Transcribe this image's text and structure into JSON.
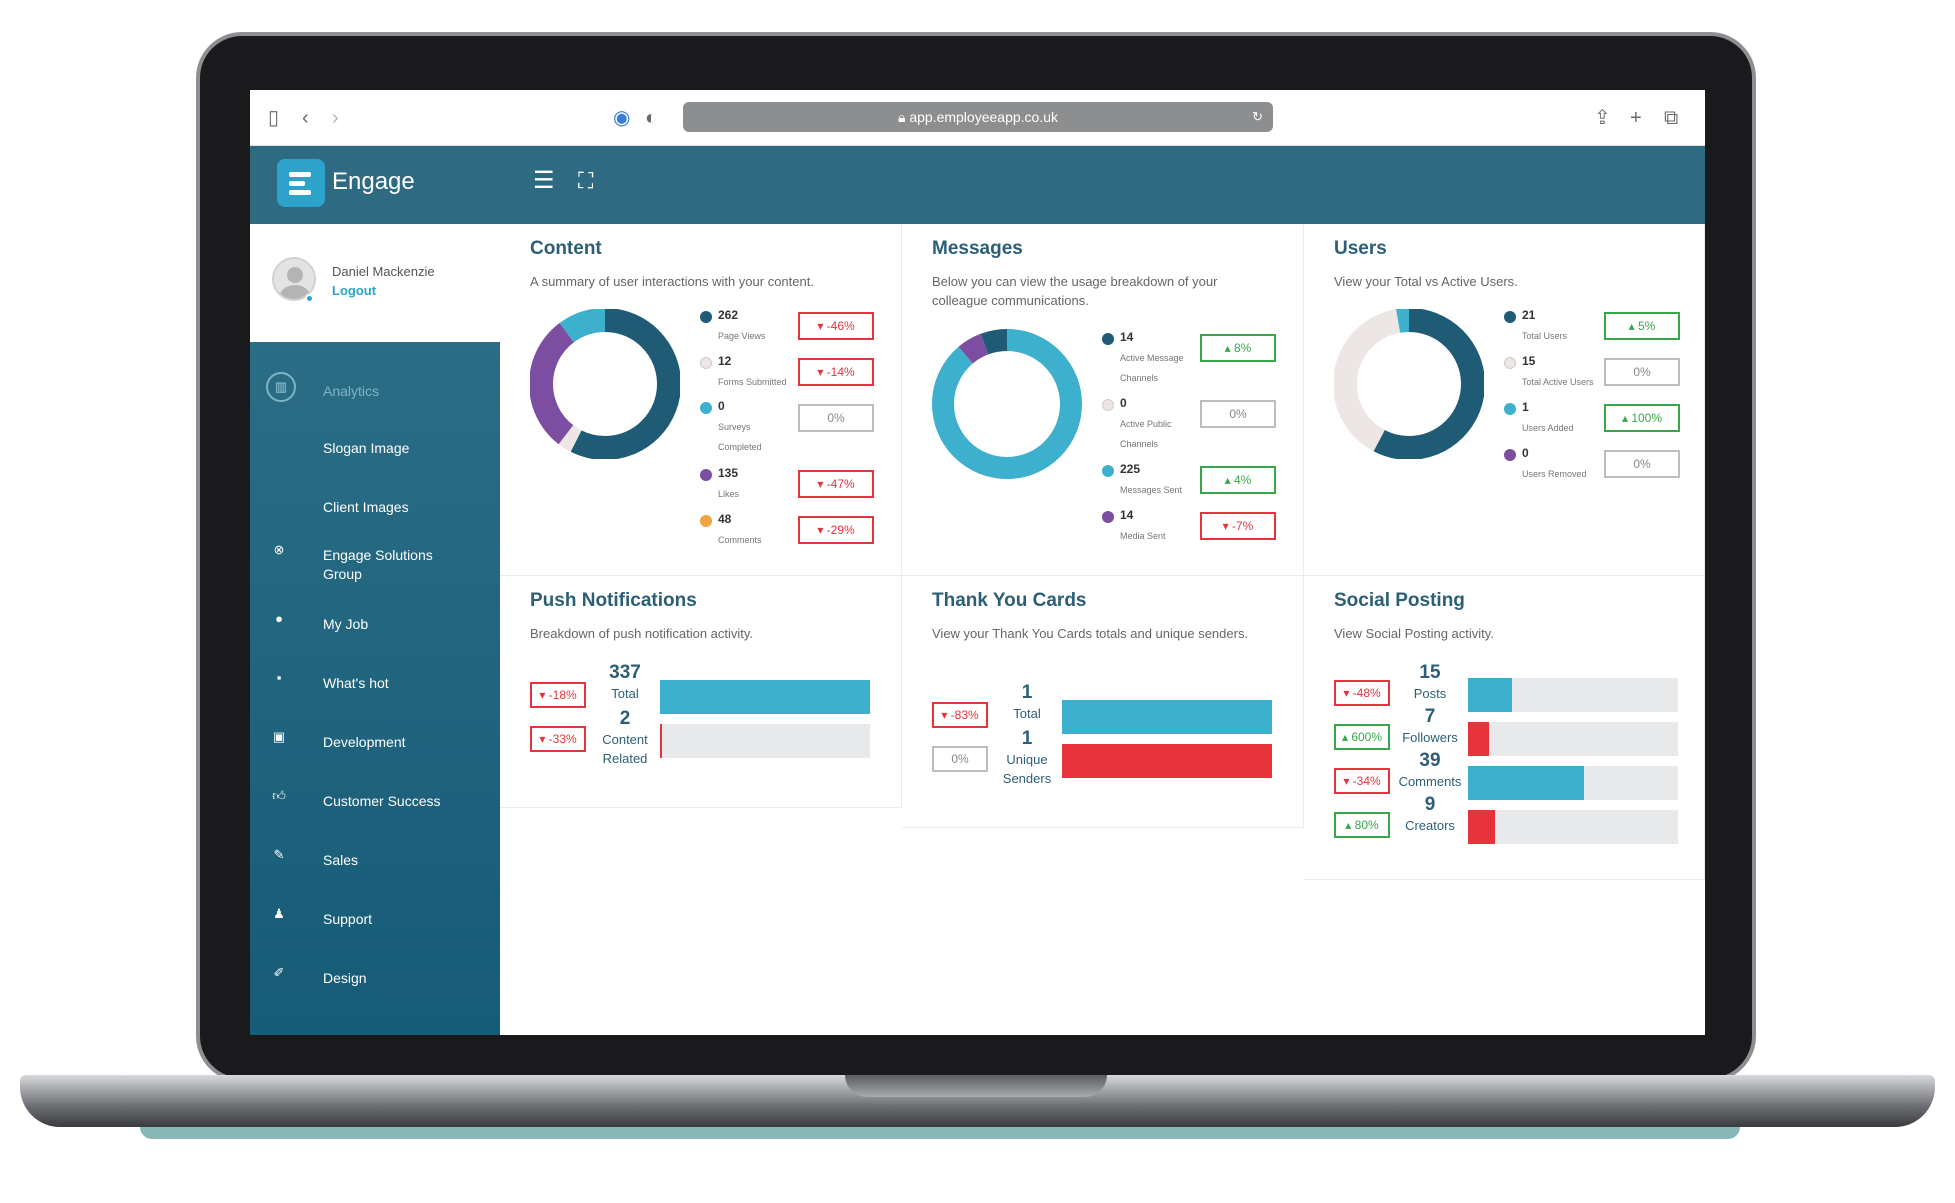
{
  "browser": {
    "url": "app.employeeapp.co.uk"
  },
  "header": {
    "brand": "Engage"
  },
  "user": {
    "name": "Daniel Mackenzie",
    "logout": "Logout"
  },
  "sidebar": {
    "items": [
      {
        "label": "Analytics",
        "icon": "analytics-icon"
      },
      {
        "label": "Slogan Image",
        "icon": ""
      },
      {
        "label": "Client Images",
        "icon": ""
      },
      {
        "label": "Engage Solutions Group",
        "icon": "group-icon"
      },
      {
        "label": "My Job",
        "icon": "person-icon"
      },
      {
        "label": "What's hot",
        "icon": "chat-icon"
      },
      {
        "label": "Development",
        "icon": "monitor-icon"
      },
      {
        "label": "Customer Success",
        "icon": "thumbs-up-icon"
      },
      {
        "label": "Sales",
        "icon": "tag-icon"
      },
      {
        "label": "Support",
        "icon": "support-icon"
      },
      {
        "label": "Design",
        "icon": "pencil-icon"
      }
    ]
  },
  "colors": {
    "dark": "#1f5b75",
    "teal": "#3cb0cc",
    "purple": "#7b4ea1",
    "light": "#ece6e4",
    "orange": "#f0a33e",
    "red": "#e6333b",
    "green": "#37a84a",
    "grey_track": "#e7e9eb"
  },
  "content": {
    "title": "Content",
    "subtitle": "A summary of user interactions with your content.",
    "legend": [
      {
        "value": "262",
        "label": "Page Views",
        "badge": "-46%",
        "trend": "down",
        "color": "#1f5b75"
      },
      {
        "value": "12",
        "label": "Forms Submitted",
        "badge": "-14%",
        "trend": "down",
        "color": "#ece6e4"
      },
      {
        "value": "0",
        "label": "Surveys Completed",
        "badge": "0%",
        "trend": "flat",
        "color": "#3cb0cc"
      },
      {
        "value": "135",
        "label": "Likes",
        "badge": "-47%",
        "trend": "down",
        "color": "#7b4ea1"
      },
      {
        "value": "48",
        "label": "Comments",
        "badge": "-29%",
        "trend": "down",
        "color": "#f0a33e"
      }
    ]
  },
  "messages": {
    "title": "Messages",
    "subtitle": "Below you can view the usage breakdown of your colleague communications.",
    "legend": [
      {
        "value": "14",
        "label": "Active Message Channels",
        "badge": "8%",
        "trend": "up",
        "color": "#1f5b75"
      },
      {
        "value": "0",
        "label": "Active Public Channels",
        "badge": "0%",
        "trend": "flat",
        "color": "#ece6e4"
      },
      {
        "value": "225",
        "label": "Messages Sent",
        "badge": "4%",
        "trend": "up",
        "color": "#3cb0cc"
      },
      {
        "value": "14",
        "label": "Media Sent",
        "badge": "-7%",
        "trend": "down",
        "color": "#7b4ea1"
      }
    ]
  },
  "users": {
    "title": "Users",
    "subtitle": "View your Total vs Active Users.",
    "legend": [
      {
        "value": "21",
        "label": "Total Users",
        "badge": "5%",
        "trend": "up",
        "color": "#1f5b75"
      },
      {
        "value": "15",
        "label": "Total Active Users",
        "badge": "0%",
        "trend": "flat",
        "color": "#ece6e4"
      },
      {
        "value": "1",
        "label": "Users Added",
        "badge": "100%",
        "trend": "up",
        "color": "#3cb0cc"
      },
      {
        "value": "0",
        "label": "Users Removed",
        "badge": "0%",
        "trend": "flat",
        "color": "#7b4ea1"
      }
    ]
  },
  "push": {
    "title": "Push Notifications",
    "subtitle": "Breakdown of push notification activity.",
    "rows": [
      {
        "value": "337",
        "label": "Total",
        "badge": "-18%",
        "trend": "down",
        "fill": 1.0,
        "color": "#3cb0cc"
      },
      {
        "value": "2",
        "label": "Content Related",
        "badge": "-33%",
        "trend": "down",
        "fill": 0.006,
        "color": "#e6333b"
      }
    ]
  },
  "thanks": {
    "title": "Thank You Cards",
    "subtitle": "View your Thank You Cards totals and unique senders.",
    "rows": [
      {
        "value": "1",
        "label": "Total",
        "badge": "-83%",
        "trend": "down",
        "fill": 1.0,
        "color": "#3cb0cc"
      },
      {
        "value": "1",
        "label": "Unique Senders",
        "badge": "0%",
        "trend": "flat",
        "fill": 1.0,
        "color": "#e6333b"
      }
    ]
  },
  "social": {
    "title": "Social Posting",
    "subtitle": "View Social Posting activity.",
    "rows": [
      {
        "value": "15",
        "label": "Posts",
        "badge": "-48%",
        "trend": "down",
        "fill": 0.21,
        "color": "#3cb0cc"
      },
      {
        "value": "7",
        "label": "Followers",
        "badge": "600%",
        "trend": "up",
        "fill": 0.1,
        "color": "#e6333b"
      },
      {
        "value": "39",
        "label": "Comments",
        "badge": "-34%",
        "trend": "down",
        "fill": 0.55,
        "color": "#3cb0cc"
      },
      {
        "value": "9",
        "label": "Creators",
        "badge": "80%",
        "trend": "up",
        "fill": 0.13,
        "color": "#e6333b"
      }
    ]
  }
}
